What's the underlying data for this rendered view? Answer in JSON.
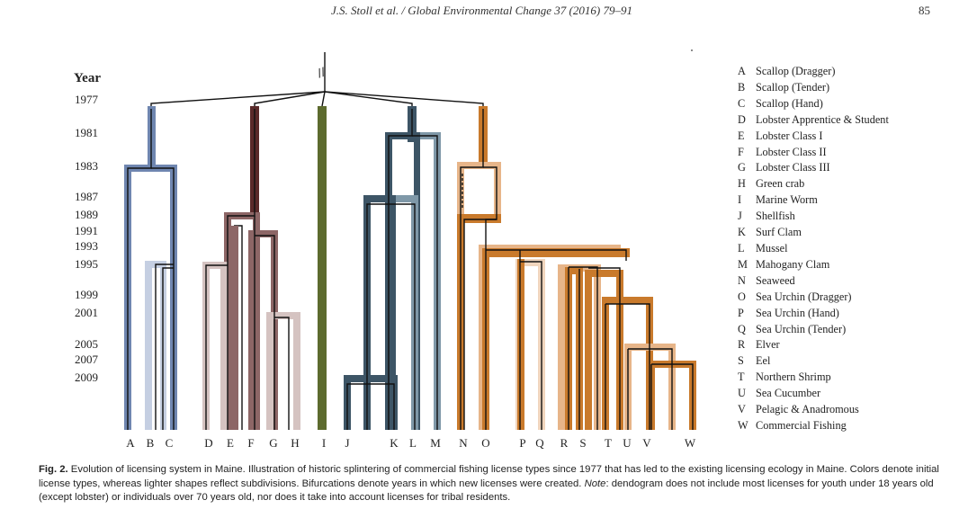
{
  "header": {
    "journal_line": "J.S. Stoll et al. / Global Environmental Change 37 (2016) 79–91",
    "page_number": "85"
  },
  "figure": {
    "year_axis_label": "Year",
    "year_labels": [
      "1977",
      "1981",
      "1983",
      "1987",
      "1989",
      "1991",
      "1993",
      "1995",
      "1999",
      "2001",
      "2005",
      "2007",
      "2009"
    ],
    "leaf_labels": [
      "A",
      "B",
      "C",
      "D",
      "E",
      "F",
      "G",
      "H",
      "I",
      "J",
      "K",
      "L",
      "M",
      "N",
      "O",
      "P",
      "Q",
      "R",
      "S",
      "T",
      "U",
      "V",
      "W"
    ],
    "break_mark": "//",
    "colors": {
      "scallop": "#6f86b0",
      "scallop_light": "#c5cfe2",
      "lobster_dark": "#5a2a2a",
      "lobster": "#8d6666",
      "lobster_light": "#d5c3c1",
      "worm": "#5d6b2e",
      "shellfish": "#3d5566",
      "shellfish_light": "#7f98a8",
      "orange": "#c97a2c",
      "orange_light": "#e7b589",
      "orange_pale": "#f0d5bd"
    }
  },
  "legend": [
    {
      "letter": "A",
      "label": "Scallop (Dragger)"
    },
    {
      "letter": "B",
      "label": "Scallop (Tender)"
    },
    {
      "letter": "C",
      "label": "Scallop (Hand)"
    },
    {
      "letter": "D",
      "label": "Lobster Apprentice & Student"
    },
    {
      "letter": "E",
      "label": "Lobster Class I"
    },
    {
      "letter": "F",
      "label": "Lobster Class II"
    },
    {
      "letter": "G",
      "label": "Lobster Class III"
    },
    {
      "letter": "H",
      "label": "Green crab"
    },
    {
      "letter": "I",
      "label": "Marine Worm"
    },
    {
      "letter": "J",
      "label": "Shellfish"
    },
    {
      "letter": "K",
      "label": "Surf Clam"
    },
    {
      "letter": "L",
      "label": "Mussel"
    },
    {
      "letter": "M",
      "label": "Mahogany Clam"
    },
    {
      "letter": "N",
      "label": "Seaweed"
    },
    {
      "letter": "O",
      "label": "Sea Urchin (Dragger)"
    },
    {
      "letter": "P",
      "label": "Sea Urchin (Hand)"
    },
    {
      "letter": "Q",
      "label": "Sea Urchin (Tender)"
    },
    {
      "letter": "R",
      "label": "Elver"
    },
    {
      "letter": "S",
      "label": "Eel"
    },
    {
      "letter": "T",
      "label": "Northern Shrimp"
    },
    {
      "letter": "U",
      "label": "Sea Cucumber"
    },
    {
      "letter": "V",
      "label": "Pelagic & Anadromous"
    },
    {
      "letter": "W",
      "label": "Commercial Fishing"
    }
  ],
  "caption": {
    "label": "Fig. 2.",
    "text1": " Evolution of licensing system in Maine. Illustration of historic splintering of commercial fishing license types since 1977 that has led to the existing licensing ecology in Maine. Colors denote initial license types, whereas lighter shapes reflect subdivisions. Bifurcations denote years in which new licenses were created. ",
    "note_label": "Note",
    "text2": ": dendogram does not include most licenses for youth under 18 years old (except lobster) or individuals over 70 years old, nor does it take into account licenses for tribal residents."
  }
}
